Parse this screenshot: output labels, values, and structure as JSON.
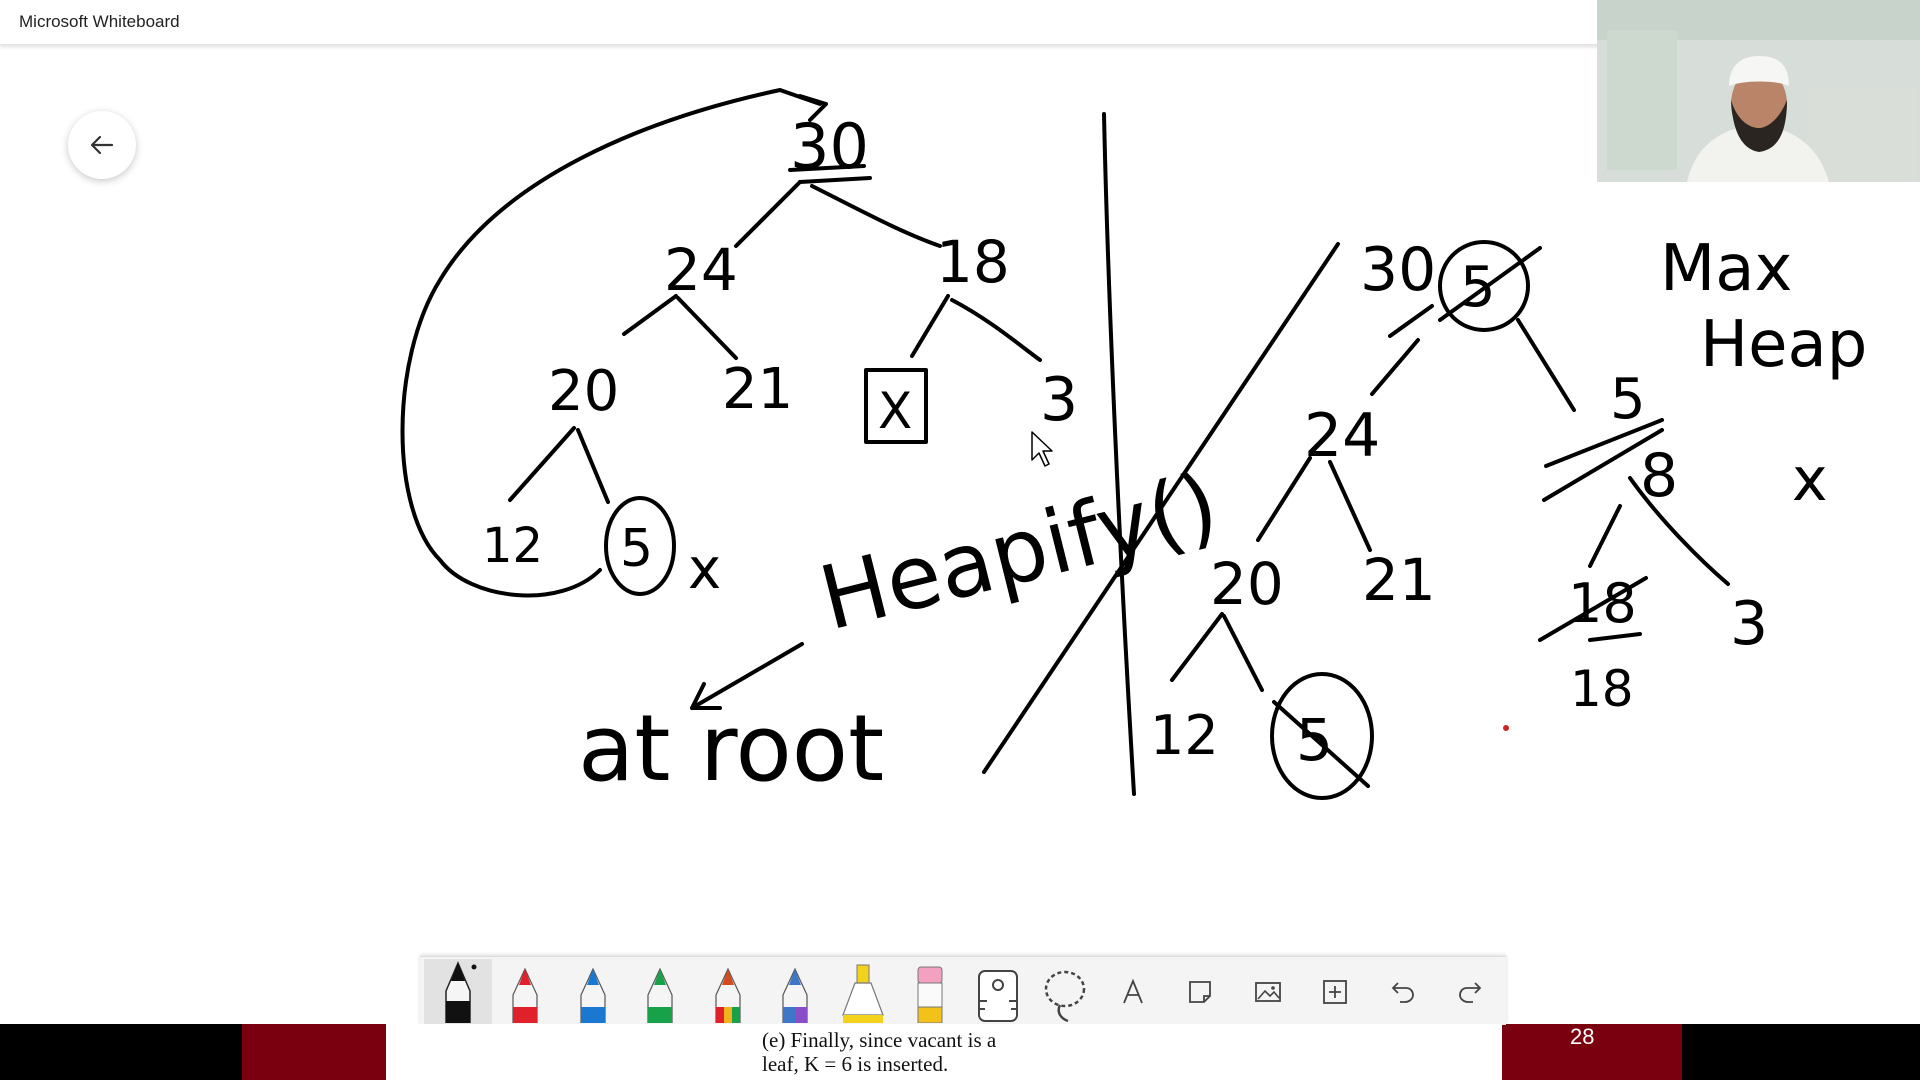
{
  "app": {
    "title": "Microsoft Whiteboard"
  },
  "navigation": {
    "back_icon": "arrow-left-icon"
  },
  "board": {
    "left_tree": {
      "nodes": [
        "30",
        "24",
        "18",
        "20",
        "21",
        "X",
        "3",
        "12",
        "5"
      ],
      "side_mark": "x"
    },
    "left_annotations": [
      "Heapify()",
      "at root"
    ],
    "right_tree": {
      "nodes": [
        "30",
        "24",
        "8",
        "20",
        "21",
        "18",
        "3",
        "12",
        "5"
      ],
      "crossed_values": [
        "5",
        "5",
        "18",
        "5"
      ],
      "side_mark": "x"
    },
    "right_title": [
      "Max",
      "Heap"
    ]
  },
  "toolbar": {
    "tools": [
      {
        "name": "pen-black-icon",
        "color": "#111111"
      },
      {
        "name": "pen-red-icon",
        "color": "#e0202a"
      },
      {
        "name": "pen-blue-icon",
        "color": "#1b78d0"
      },
      {
        "name": "pen-green-icon",
        "color": "#17a24a"
      },
      {
        "name": "pen-rainbow-icon",
        "color": "#d14b1f"
      },
      {
        "name": "pen-galaxy-icon",
        "color": "#3f77c8"
      },
      {
        "name": "highlighter-icon",
        "color": "#f2d21b"
      },
      {
        "name": "eraser-icon",
        "color": "#f2a2c0"
      },
      {
        "name": "ruler-icon",
        "color": "#444444"
      },
      {
        "name": "lasso-icon",
        "color": "#444444"
      },
      {
        "name": "text-icon",
        "color": "#444444"
      },
      {
        "name": "note-icon",
        "color": "#444444"
      },
      {
        "name": "image-icon",
        "color": "#444444"
      },
      {
        "name": "add-icon",
        "color": "#444444"
      },
      {
        "name": "undo-icon",
        "color": "#444444"
      },
      {
        "name": "redo-icon",
        "color": "#444444"
      }
    ],
    "text_tool_label": "A"
  },
  "slide": {
    "caption_line1": "(e) Finally, since vacant is a",
    "caption_line2": "leaf, K = 6 is inserted.",
    "page_number": "28"
  },
  "colors": {
    "slide_red": "#7a0010",
    "stray_dot": "#cc2222"
  }
}
